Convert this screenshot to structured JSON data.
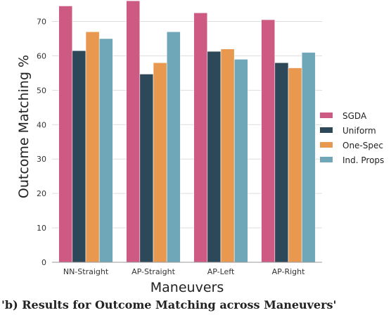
{
  "chart_data": {
    "type": "bar",
    "categories": [
      "NN-Straight",
      "AP-Straight",
      "AP-Left",
      "AP-Right"
    ],
    "series": [
      {
        "name": "SGDA",
        "color": "#cc5a82",
        "values": [
          74.5,
          76.0,
          72.5,
          70.5
        ]
      },
      {
        "name": "Uniform",
        "color": "#2d4858",
        "values": [
          61.5,
          54.7,
          61.3,
          58.0
        ]
      },
      {
        "name": "One-Spec",
        "color": "#e9994f",
        "values": [
          67.0,
          58.0,
          62.0,
          56.5
        ]
      },
      {
        "name": "Ind. Props",
        "color": "#6fa6b8",
        "values": [
          65.0,
          67.0,
          59.0,
          61.0
        ]
      }
    ],
    "xlabel": "Maneuvers",
    "ylabel": "Outcome Matching %",
    "ylim": [
      0,
      75
    ],
    "yticks": [
      0,
      10,
      20,
      30,
      40,
      50,
      60,
      70
    ],
    "grid": "horizontal",
    "legend_position": "right"
  },
  "caption_fragment": "'b) Results for Outcome Matching across Maneuvers'"
}
